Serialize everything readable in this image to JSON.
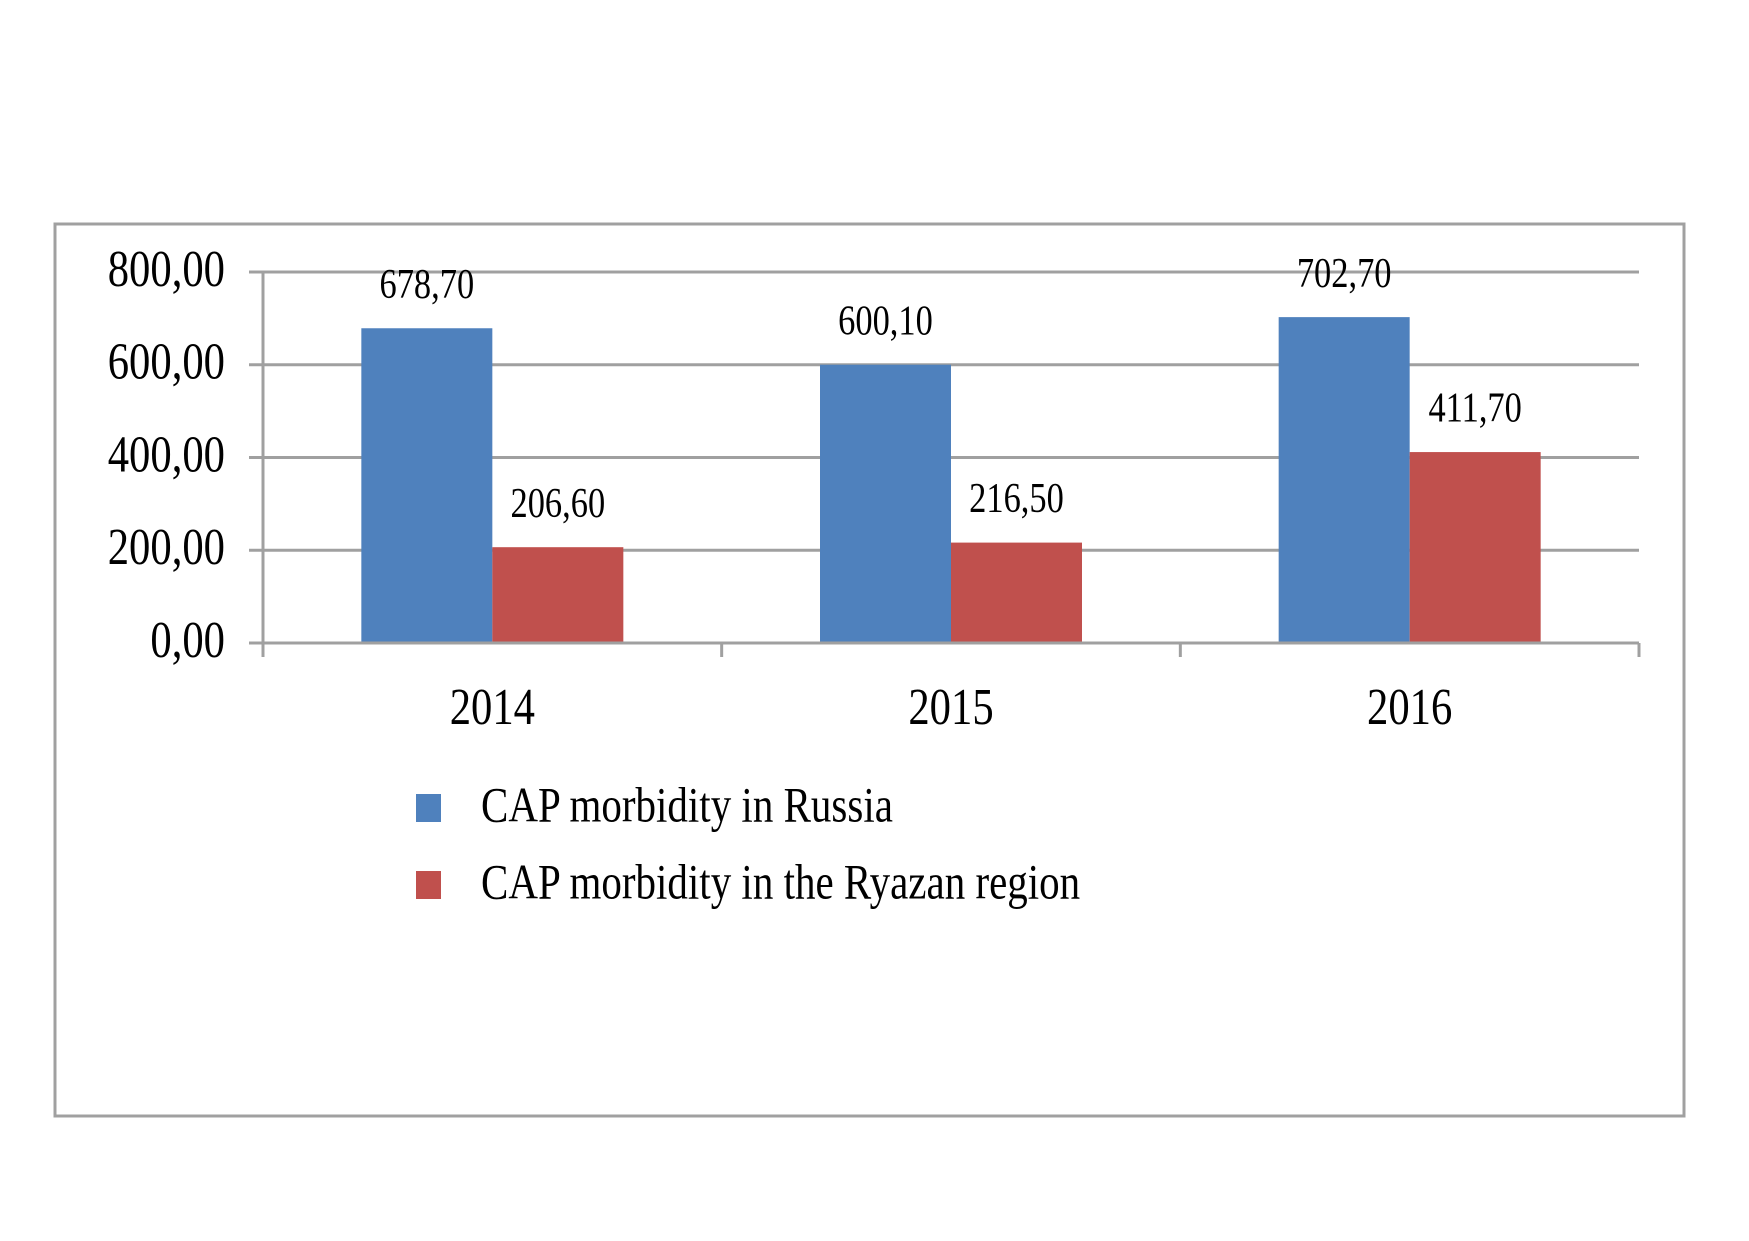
{
  "chart_data": {
    "type": "bar",
    "title": "",
    "xlabel": "",
    "ylabel": "",
    "categories": [
      "2014",
      "2015",
      "2016"
    ],
    "series": [
      {
        "name": "CAP morbidity in Russia",
        "color": "#4f81bd",
        "values": [
          678.7,
          600.1,
          702.7
        ],
        "labels": [
          "678,70",
          "600,10",
          "702,70"
        ]
      },
      {
        "name": "CAP morbidity in the Ryazan region",
        "color": "#c0504d",
        "values": [
          206.6,
          216.5,
          411.7
        ],
        "labels": [
          "206,60",
          "216,50",
          "411,70"
        ]
      }
    ],
    "ylim": [
      0,
      800
    ],
    "yticks": [
      0,
      200,
      400,
      600,
      800
    ],
    "ytick_labels": [
      "0,00",
      "200,00",
      "400,00",
      "600,00",
      "800,00"
    ],
    "grid": true,
    "legend_position": "bottom"
  }
}
